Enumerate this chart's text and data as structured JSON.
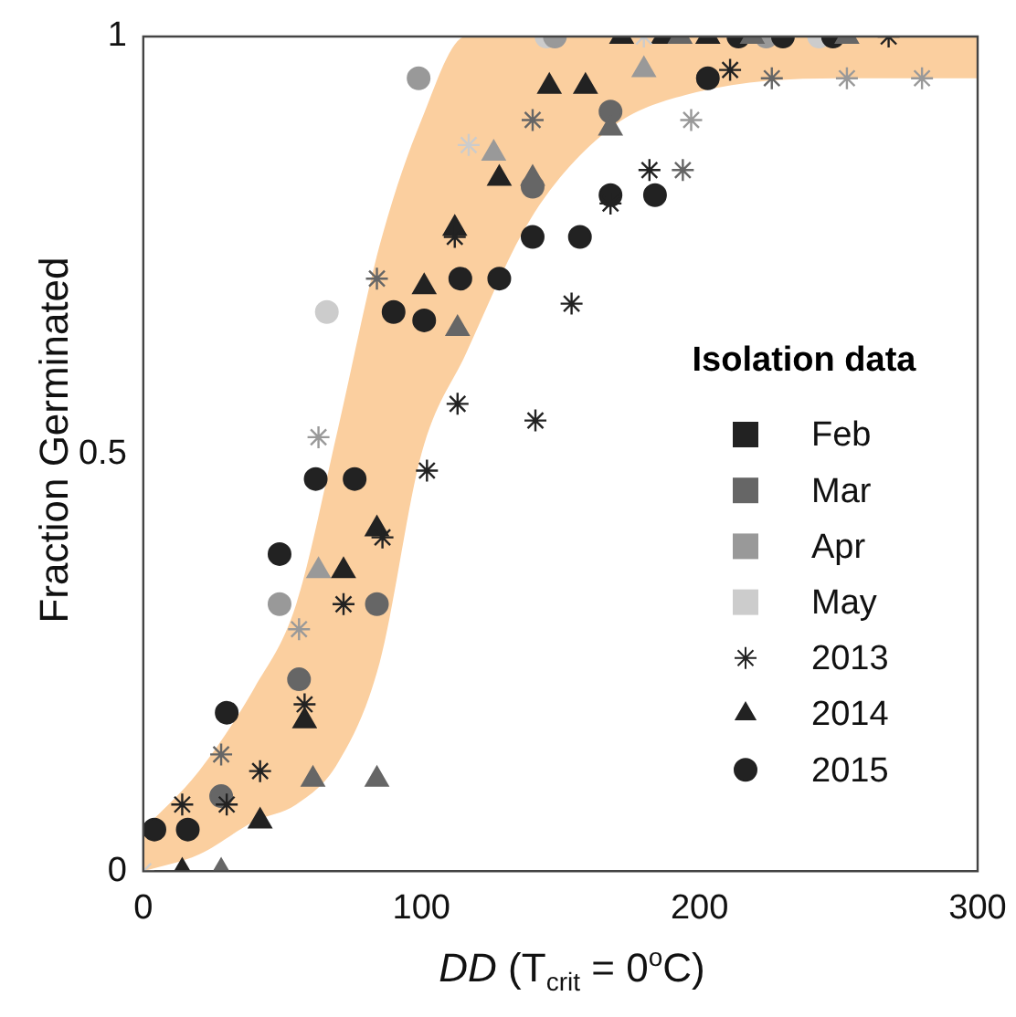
{
  "chart_data": {
    "type": "scatter",
    "xlabel": "DD (T$_{crit}$ = 0$^{o}$C)",
    "ylabel": "Fraction Germinated",
    "legend_title": "Isolation data",
    "legend": "right",
    "grid": false,
    "xlim": [
      0,
      300
    ],
    "xticks": [
      0,
      100,
      200,
      300
    ],
    "ylim": [
      0,
      1
    ],
    "yticks": [
      0,
      0.5,
      1
    ],
    "series": [
      {
        "type": "area",
        "color": "#fbcf9f",
        "x": [
          0,
          20,
          40,
          55,
          70,
          85,
          100,
          116,
          139,
          168,
          195,
          250,
          300
        ],
        "values": [
          null,
          null,
          null,
          null,
          null,
          null,
          null,
          null,
          null,
          null,
          null,
          null,
          null
        ],
        "lower": [
          0,
          0.02,
          0.06,
          0.08,
          0.13,
          0.25,
          0.5,
          0.62,
          0.78,
          0.89,
          0.93,
          0.95,
          0.95
        ],
        "upper": [
          0.05,
          0.12,
          0.22,
          0.32,
          0.53,
          0.75,
          0.9,
          1,
          1,
          1,
          1,
          1,
          1
        ]
      },
      {
        "name": "Feb",
        "marker": "square",
        "color": "#222222"
      },
      {
        "name": "Mar",
        "marker": "square",
        "color": "#666666"
      },
      {
        "name": "Apr",
        "marker": "square",
        "color": "#999999"
      },
      {
        "name": "May",
        "marker": "square",
        "color": "#cccccc"
      },
      {
        "name": "2013",
        "marker": "cross",
        "color": "#222222",
        "x": [
          0,
          14,
          30,
          28,
          42,
          58,
          56,
          72,
          63,
          86,
          84,
          112,
          117,
          140,
          182,
          194,
          168,
          154,
          113,
          141,
          102,
          180,
          268,
          197,
          211,
          226,
          253,
          280
        ],
        "values": [
          0,
          0.08,
          0.08,
          0.14,
          0.12,
          0.2,
          0.29,
          0.32,
          0.52,
          0.4,
          0.71,
          0.76,
          0.87,
          0.9,
          0.84,
          0.84,
          0.8,
          0.68,
          0.56,
          0.54,
          0.48,
          1,
          1,
          0.9,
          0.96,
          0.95,
          0.95,
          0.95
        ],
        "colors": [
          "#cccccc",
          "#222222",
          "#222222",
          "#666666",
          "#222222",
          "#222222",
          "#999999",
          "#222222",
          "#999999",
          "#222222",
          "#666666",
          "#222222",
          "#cccccc",
          "#666666",
          "#222222",
          "#666666",
          "#222222",
          "#222222",
          "#222222",
          "#222222",
          "#222222",
          "#cccccc",
          "#222222",
          "#999999",
          "#222222",
          "#666666",
          "#999999",
          "#999999"
        ]
      },
      {
        "name": "2014",
        "marker": "triangle",
        "color": "#222222",
        "x": [
          14,
          28,
          42,
          58,
          61,
          84,
          63,
          72,
          84,
          101,
          112,
          113,
          128,
          126,
          140,
          146,
          159,
          168,
          180,
          172,
          187,
          193,
          203,
          219,
          253
        ],
        "values": [
          0,
          0,
          0.06,
          0.18,
          0.11,
          0.11,
          0.36,
          0.36,
          0.41,
          0.7,
          0.77,
          0.65,
          0.83,
          0.86,
          0.83,
          0.94,
          0.94,
          0.89,
          0.96,
          1,
          1,
          1,
          1,
          1,
          1
        ],
        "colors": [
          "#222222",
          "#666666",
          "#222222",
          "#222222",
          "#666666",
          "#666666",
          "#999999",
          "#222222",
          "#222222",
          "#222222",
          "#222222",
          "#666666",
          "#222222",
          "#999999",
          "#666666",
          "#222222",
          "#222222",
          "#666666",
          "#999999",
          "#222222",
          "#222222",
          "#666666",
          "#222222",
          "#666666",
          "#666666"
        ]
      },
      {
        "name": "2015",
        "marker": "circle",
        "color": "#222222",
        "x": [
          4,
          16,
          30,
          28,
          56,
          49,
          84,
          49,
          62,
          76,
          66,
          90,
          101,
          114,
          128,
          140,
          157,
          99,
          140,
          168,
          168,
          184,
          145,
          148,
          203,
          214,
          224,
          230,
          243,
          248
        ],
        "values": [
          0.05,
          0.05,
          0.19,
          0.09,
          0.23,
          0.32,
          0.32,
          0.38,
          0.47,
          0.47,
          0.67,
          0.67,
          0.66,
          0.71,
          0.71,
          0.76,
          0.76,
          0.95,
          0.82,
          0.91,
          0.81,
          0.81,
          1,
          1,
          0.95,
          1,
          1,
          1,
          1,
          1
        ],
        "colors": [
          "#222222",
          "#222222",
          "#222222",
          "#666666",
          "#666666",
          "#999999",
          "#666666",
          "#222222",
          "#222222",
          "#222222",
          "#cccccc",
          "#222222",
          "#222222",
          "#222222",
          "#222222",
          "#222222",
          "#222222",
          "#999999",
          "#666666",
          "#666666",
          "#222222",
          "#222222",
          "#cccccc",
          "#999999",
          "#222222",
          "#222222",
          "#999999",
          "#222222",
          "#cccccc",
          "#222222"
        ]
      }
    ]
  }
}
